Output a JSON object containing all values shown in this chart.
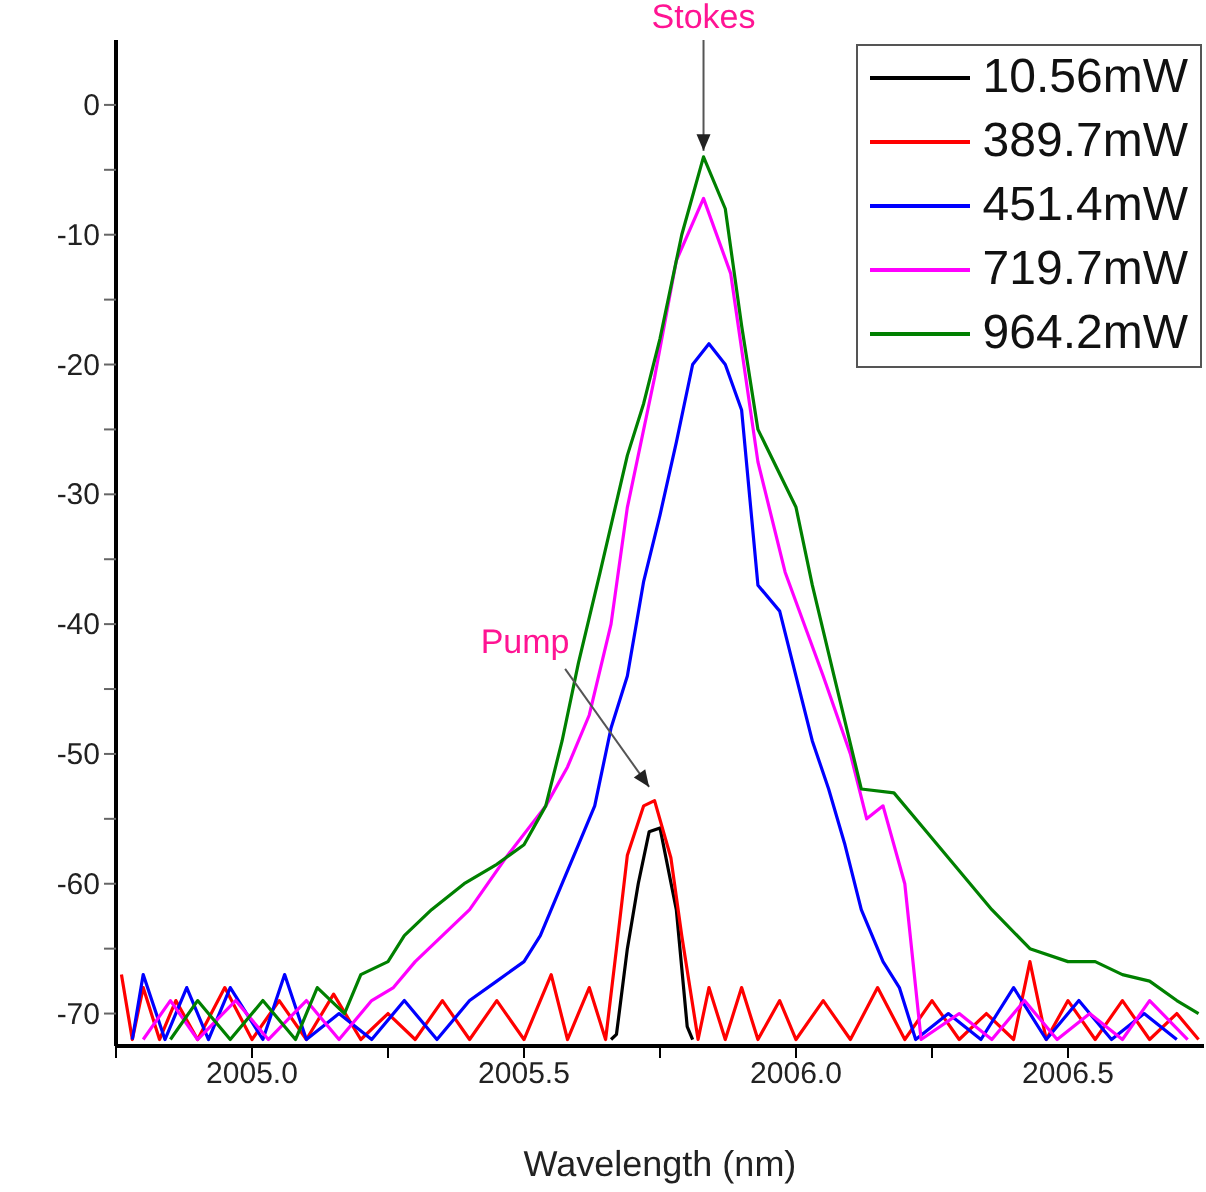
{
  "chart_data": {
    "type": "line",
    "xlabel": "Wavelength (nm)",
    "xlim": [
      2004.75,
      2006.75
    ],
    "ylim": [
      -72.5,
      5
    ],
    "xticks": [
      {
        "value": 2004.75,
        "label": null
      },
      {
        "value": 2005.0,
        "label": "2005.0"
      },
      {
        "value": 2005.25,
        "label": null
      },
      {
        "value": 2005.5,
        "label": "2005.5"
      },
      {
        "value": 2005.75,
        "label": null
      },
      {
        "value": 2006.0,
        "label": "2006.0"
      },
      {
        "value": 2006.25,
        "label": null
      },
      {
        "value": 2006.5,
        "label": "2006.5"
      }
    ],
    "yticks": [
      -70,
      {
        "value": -65,
        "label": null
      },
      -60,
      {
        "value": -55,
        "label": null
      },
      -50,
      {
        "value": -45,
        "label": null
      },
      -40,
      {
        "value": -35,
        "label": null
      },
      -30,
      {
        "value": -25,
        "label": null
      },
      -20,
      {
        "value": -15,
        "label": null
      },
      -10,
      {
        "value": -5,
        "label": null
      },
      0
    ],
    "grid": false,
    "legend": "top right",
    "marker": "none",
    "line_style": "solid",
    "annotations": [
      {
        "text": "Stokes",
        "x": 2005.83,
        "y": -4
      },
      {
        "text": "Pump",
        "x": 2005.73,
        "y": -53
      }
    ],
    "series": [
      {
        "name": "10.56mW",
        "color": "#000000",
        "x": [
          2005.66,
          2005.67,
          2005.69,
          2005.71,
          2005.73,
          2005.75,
          2005.78,
          2005.8,
          2005.81
        ],
        "values": [
          -72,
          -71.6,
          -65,
          -60,
          -56,
          -55.7,
          -62,
          -71,
          -72
        ]
      },
      {
        "name": "389.7mW",
        "color": "#ff0000",
        "x": [
          2004.76,
          2004.78,
          2004.8,
          2004.83,
          2004.86,
          2004.9,
          2004.95,
          2005.0,
          2005.05,
          2005.1,
          2005.15,
          2005.2,
          2005.25,
          2005.3,
          2005.35,
          2005.4,
          2005.45,
          2005.5,
          2005.55,
          2005.58,
          2005.62,
          2005.65,
          2005.67,
          2005.69,
          2005.72,
          2005.74,
          2005.77,
          2005.79,
          2005.82,
          2005.84,
          2005.87,
          2005.9,
          2005.93,
          2005.97,
          2006.0,
          2006.05,
          2006.1,
          2006.15,
          2006.2,
          2006.25,
          2006.3,
          2006.35,
          2006.4,
          2006.43,
          2006.46,
          2006.5,
          2006.55,
          2006.6,
          2006.65,
          2006.7,
          2006.74
        ],
        "values": [
          -67,
          -72,
          -68,
          -72,
          -69,
          -72,
          -68,
          -72,
          -69,
          -72,
          -68.5,
          -72,
          -70,
          -72,
          -69,
          -72,
          -69,
          -72,
          -67,
          -72,
          -68,
          -72,
          -65,
          -57.8,
          -54,
          -53.6,
          -58,
          -64,
          -72,
          -68,
          -72,
          -68,
          -72,
          -69,
          -72,
          -69,
          -72,
          -68,
          -72,
          -69,
          -72,
          -70,
          -72,
          -66,
          -72,
          -69,
          -72,
          -69,
          -72,
          -70,
          -72
        ]
      },
      {
        "name": "451.4mW",
        "color": "#0000ff",
        "x": [
          2004.78,
          2004.8,
          2004.84,
          2004.88,
          2004.92,
          2004.96,
          2005.02,
          2005.06,
          2005.1,
          2005.16,
          2005.22,
          2005.28,
          2005.34,
          2005.4,
          2005.45,
          2005.5,
          2005.53,
          2005.57,
          2005.6,
          2005.63,
          2005.66,
          2005.69,
          2005.72,
          2005.75,
          2005.78,
          2005.81,
          2005.84,
          2005.87,
          2005.9,
          2005.93,
          2005.97,
          2006.0,
          2006.03,
          2006.06,
          2006.09,
          2006.12,
          2006.16,
          2006.19,
          2006.22,
          2006.28,
          2006.34,
          2006.4,
          2006.46,
          2006.52,
          2006.58,
          2006.64,
          2006.7
        ],
        "values": [
          -72,
          -67,
          -72,
          -68,
          -72,
          -68,
          -72,
          -67,
          -72,
          -70,
          -72,
          -69,
          -72,
          -69,
          -67.5,
          -66,
          -64,
          -60,
          -57,
          -54,
          -48,
          -44,
          -36.7,
          -31.6,
          -26,
          -20,
          -18.4,
          -20,
          -23.5,
          -37,
          -39,
          -44,
          -49,
          -52.7,
          -57,
          -62,
          -66,
          -68,
          -72,
          -70,
          -72,
          -68,
          -72,
          -69,
          -72,
          -70,
          -72
        ]
      },
      {
        "name": "719.7mW",
        "color": "#ff00ff",
        "x": [
          2004.8,
          2004.85,
          2004.9,
          2004.97,
          2005.03,
          2005.1,
          2005.16,
          2005.22,
          2005.26,
          2005.3,
          2005.35,
          2005.4,
          2005.47,
          2005.54,
          2005.58,
          2005.62,
          2005.66,
          2005.69,
          2005.74,
          2005.78,
          2005.83,
          2005.88,
          2005.93,
          2005.98,
          2006.05,
          2006.1,
          2006.13,
          2006.16,
          2006.2,
          2006.22,
          2006.23,
          2006.3,
          2006.36,
          2006.42,
          2006.48,
          2006.54,
          2006.6,
          2006.65,
          2006.72
        ],
        "values": [
          -72,
          -69,
          -72,
          -69,
          -72,
          -69,
          -72,
          -69,
          -68,
          -66,
          -64,
          -62,
          -57.8,
          -54,
          -51,
          -47,
          -40,
          -31,
          -21,
          -12,
          -7.2,
          -13,
          -27.5,
          -36,
          -44,
          -50,
          -55,
          -54,
          -60,
          -68,
          -72,
          -70,
          -72,
          -69,
          -72,
          -70,
          -72,
          -69,
          -72
        ]
      },
      {
        "name": "964.2mW",
        "color": "#008000",
        "x": [
          2004.85,
          2004.9,
          2004.96,
          2005.02,
          2005.08,
          2005.12,
          2005.17,
          2005.2,
          2005.25,
          2005.28,
          2005.33,
          2005.39,
          2005.45,
          2005.5,
          2005.54,
          2005.57,
          2005.6,
          2005.64,
          2005.69,
          2005.72,
          2005.75,
          2005.79,
          2005.83,
          2005.87,
          2005.9,
          2005.93,
          2006.0,
          2006.03,
          2006.07,
          2006.12,
          2006.18,
          2006.24,
          2006.3,
          2006.36,
          2006.43,
          2006.5,
          2006.55,
          2006.6,
          2006.65,
          2006.7,
          2006.74
        ],
        "values": [
          -72,
          -69,
          -72,
          -69,
          -72,
          -68,
          -70,
          -67,
          -66,
          -64,
          -62,
          -60,
          -58.5,
          -57,
          -54,
          -49,
          -43,
          -36,
          -27,
          -23,
          -18,
          -10,
          -4,
          -8,
          -17,
          -25,
          -31,
          -37,
          -44,
          -52.7,
          -53,
          -56,
          -59,
          -62,
          -65,
          -66,
          -66,
          -67,
          -67.5,
          -69,
          -70
        ]
      }
    ]
  }
}
